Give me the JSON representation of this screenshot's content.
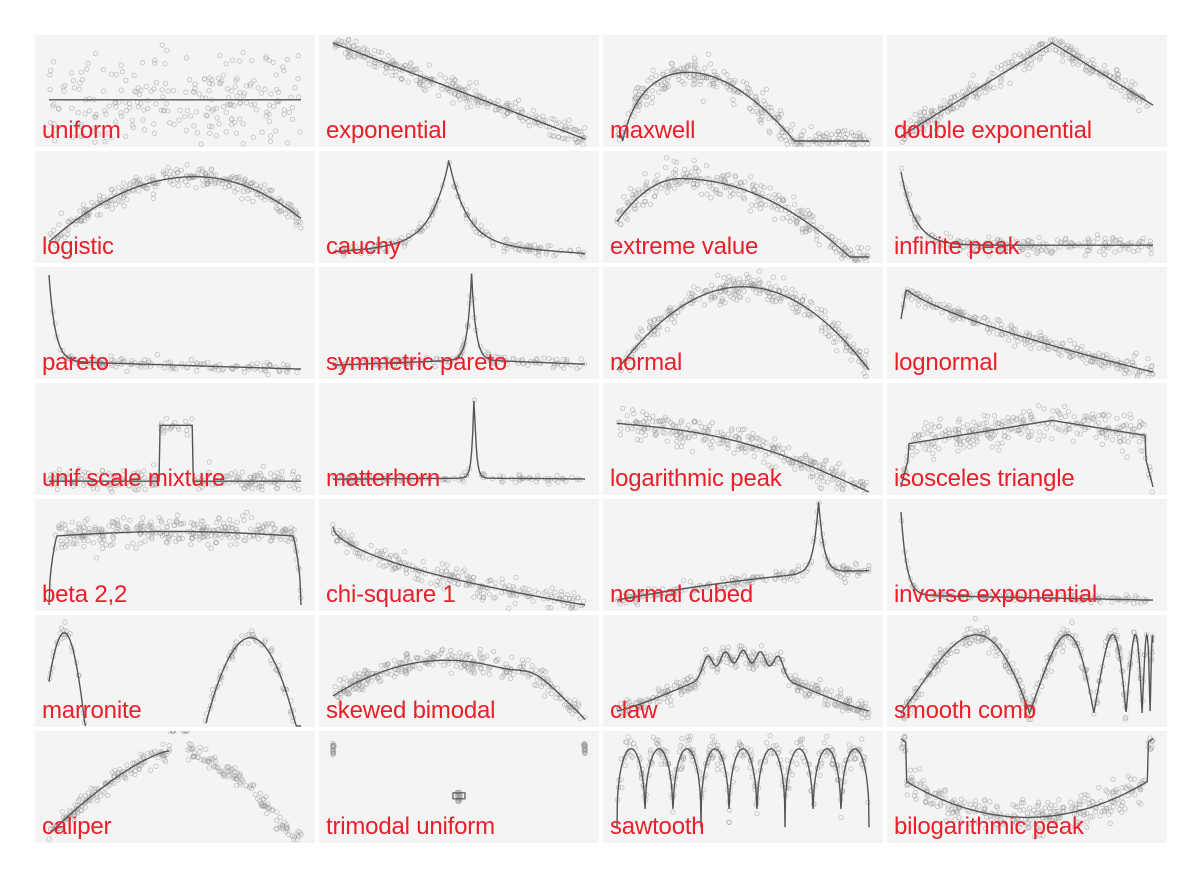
{
  "style": {
    "background": "#ffffff",
    "panel_background": "#f4f4f4",
    "label_color": "#e8202a",
    "curve_color": "#555555",
    "point_color": "#999999"
  },
  "chart_data": {
    "type": "scatter",
    "layout": "small multiples, 7 rows x 4 columns",
    "axes_visible": false,
    "grid": false,
    "note_per_panel": "each panel shows sample points (grey circles) scattered around a density/log-density curve",
    "panels": [
      {
        "name": "uniform"
      },
      {
        "name": "exponential"
      },
      {
        "name": "maxwell"
      },
      {
        "name": "double exponential"
      },
      {
        "name": "logistic"
      },
      {
        "name": "cauchy"
      },
      {
        "name": "extreme value"
      },
      {
        "name": "infinite peak"
      },
      {
        "name": "pareto"
      },
      {
        "name": "symmetric pareto"
      },
      {
        "name": "normal"
      },
      {
        "name": "lognormal"
      },
      {
        "name": "unif scale mixture"
      },
      {
        "name": "matterhorn"
      },
      {
        "name": "logarithmic peak"
      },
      {
        "name": "isosceles triangle"
      },
      {
        "name": "beta 2,2"
      },
      {
        "name": "chi-square 1"
      },
      {
        "name": "normal cubed"
      },
      {
        "name": "inverse exponential"
      },
      {
        "name": "marronite"
      },
      {
        "name": "skewed bimodal"
      },
      {
        "name": "claw"
      },
      {
        "name": "smooth comb"
      },
      {
        "name": "caliper"
      },
      {
        "name": "trimodal uniform"
      },
      {
        "name": "sawtooth"
      },
      {
        "name": "bilogarithmic peak"
      }
    ]
  }
}
